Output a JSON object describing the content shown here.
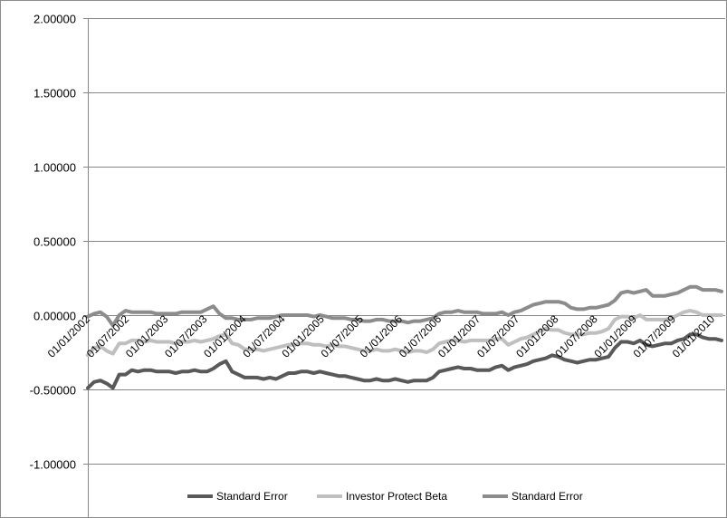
{
  "chart_data": {
    "type": "line",
    "title": "",
    "xlabel": "",
    "ylabel": "",
    "ylim": [
      -1.0,
      2.0
    ],
    "y_ticks": [
      "2.00000",
      "1.50000",
      "1.00000",
      "0.50000",
      "0.00000",
      "-0.50000",
      "-1.00000"
    ],
    "x_tick_labels": [
      "01/01/2002",
      "01/07/2002",
      "01/01/2003",
      "01/07/2003",
      "01/01/2004",
      "01/07/2004",
      "01/01/2005",
      "01/07/2005",
      "01/01/2006",
      "01/07/2006",
      "01/01/2007",
      "01/07/2007",
      "01/01/2008",
      "01/07/2008",
      "01/01/2009",
      "01/07/2009",
      "01/01/2010"
    ],
    "grid": true,
    "legend_position": "bottom",
    "colors": {
      "series1": "#595959",
      "series2": "#bfbfbf",
      "series3": "#8c8c8c",
      "axis": "#868686",
      "grid": "#868686"
    },
    "series": [
      {
        "name": "Standard Error",
        "color": "#595959",
        "values": [
          -0.49,
          -0.45,
          -0.44,
          -0.46,
          -0.49,
          -0.4,
          -0.4,
          -0.37,
          -0.38,
          -0.37,
          -0.37,
          -0.38,
          -0.38,
          -0.38,
          -0.39,
          -0.38,
          -0.38,
          -0.37,
          -0.38,
          -0.38,
          -0.36,
          -0.33,
          -0.31,
          -0.38,
          -0.4,
          -0.42,
          -0.42,
          -0.42,
          -0.43,
          -0.42,
          -0.43,
          -0.41,
          -0.39,
          -0.39,
          -0.38,
          -0.38,
          -0.39,
          -0.38,
          -0.39,
          -0.4,
          -0.41,
          -0.41,
          -0.42,
          -0.43,
          -0.44,
          -0.44,
          -0.43,
          -0.44,
          -0.44,
          -0.43,
          -0.44,
          -0.45,
          -0.44,
          -0.44,
          -0.44,
          -0.42,
          -0.38,
          -0.37,
          -0.36,
          -0.35,
          -0.36,
          -0.36,
          -0.37,
          -0.37,
          -0.37,
          -0.35,
          -0.34,
          -0.37,
          -0.35,
          -0.34,
          -0.33,
          -0.31,
          -0.3,
          -0.29,
          -0.27,
          -0.28,
          -0.3,
          -0.31,
          -0.32,
          -0.31,
          -0.3,
          -0.3,
          -0.29,
          -0.28,
          -0.22,
          -0.18,
          -0.18,
          -0.19,
          -0.17,
          -0.2,
          -0.21,
          -0.2,
          -0.19,
          -0.19,
          -0.17,
          -0.16,
          -0.13,
          -0.13,
          -0.15,
          -0.16,
          -0.16,
          -0.17
        ]
      },
      {
        "name": "Investor Protect Beta",
        "color": "#bfbfbf",
        "values": [
          -0.27,
          -0.22,
          -0.21,
          -0.24,
          -0.26,
          -0.19,
          -0.19,
          -0.17,
          -0.17,
          -0.18,
          -0.17,
          -0.18,
          -0.18,
          -0.18,
          -0.19,
          -0.18,
          -0.18,
          -0.17,
          -0.18,
          -0.17,
          -0.16,
          -0.14,
          -0.13,
          -0.19,
          -0.2,
          -0.23,
          -0.23,
          -0.23,
          -0.24,
          -0.23,
          -0.22,
          -0.21,
          -0.2,
          -0.2,
          -0.19,
          -0.19,
          -0.2,
          -0.2,
          -0.21,
          -0.2,
          -0.21,
          -0.21,
          -0.22,
          -0.23,
          -0.24,
          -0.24,
          -0.23,
          -0.24,
          -0.24,
          -0.23,
          -0.24,
          -0.25,
          -0.24,
          -0.24,
          -0.25,
          -0.23,
          -0.19,
          -0.18,
          -0.17,
          -0.17,
          -0.18,
          -0.17,
          -0.17,
          -0.17,
          -0.17,
          -0.16,
          -0.16,
          -0.2,
          -0.18,
          -0.16,
          -0.15,
          -0.13,
          -0.11,
          -0.09,
          -0.1,
          -0.1,
          -0.12,
          -0.13,
          -0.13,
          -0.13,
          -0.12,
          -0.12,
          -0.11,
          -0.09,
          -0.03,
          -0.01,
          -0.01,
          -0.02,
          0.0,
          -0.03,
          -0.03,
          -0.03,
          -0.03,
          -0.02,
          0.0,
          0.02,
          0.03,
          0.02,
          0.0,
          0.0,
          0.0,
          0.0
        ]
      },
      {
        "name": "Standard Error",
        "color": "#8c8c8c",
        "values": [
          -0.01,
          0.01,
          0.02,
          -0.01,
          -0.07,
          0.0,
          0.03,
          0.02,
          0.02,
          0.02,
          0.02,
          0.01,
          0.01,
          0.01,
          0.01,
          0.02,
          0.02,
          0.02,
          0.02,
          0.04,
          0.06,
          0.01,
          -0.02,
          -0.02,
          -0.03,
          -0.03,
          -0.03,
          -0.02,
          -0.02,
          -0.02,
          -0.01,
          0.0,
          0.0,
          0.0,
          0.0,
          0.0,
          -0.01,
          0.0,
          -0.01,
          -0.02,
          -0.02,
          -0.02,
          -0.03,
          -0.03,
          -0.04,
          -0.04,
          -0.03,
          -0.03,
          -0.04,
          -0.04,
          -0.04,
          -0.05,
          -0.04,
          -0.04,
          -0.03,
          -0.02,
          0.01,
          0.02,
          0.02,
          0.03,
          0.02,
          0.02,
          0.02,
          0.01,
          0.01,
          0.01,
          0.02,
          0.0,
          0.02,
          0.03,
          0.05,
          0.07,
          0.08,
          0.09,
          0.09,
          0.09,
          0.08,
          0.05,
          0.04,
          0.04,
          0.05,
          0.05,
          0.06,
          0.07,
          0.1,
          0.15,
          0.16,
          0.15,
          0.16,
          0.17,
          0.13,
          0.13,
          0.13,
          0.14,
          0.15,
          0.17,
          0.19,
          0.19,
          0.17,
          0.17,
          0.17,
          0.16
        ]
      }
    ]
  }
}
